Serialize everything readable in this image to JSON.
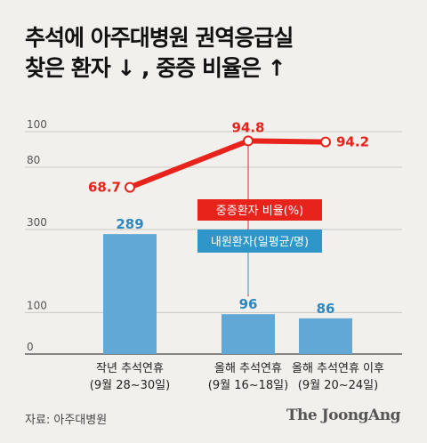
{
  "header": {
    "title_line1": "추석에 아주대병원 권역응급실",
    "title_line2": "찾은 환자 ↓ , 중증 비율은 ↑"
  },
  "footer": {
    "source": "자료: 아주대병원",
    "brand": "The JoongAng"
  },
  "colors": {
    "line": "#e8231c",
    "bar": "#62a8d6",
    "bar_label": "#2f88c0",
    "legend_red_bg": "#e8231c",
    "legend_blue_bg": "#2f96c9",
    "background": "#f1f0ec"
  },
  "chart_data": [
    {
      "type": "line",
      "categories": [
        "작년 추석연휴\n(9월 28~30일)",
        "올해 추석연휴\n(9월 16~18일)",
        "올해 추석연휴 이후\n(9월 20~24일)"
      ],
      "series": [
        {
          "name": "중증환자 비율(%)",
          "values": [
            68.7,
            94.8,
            94.2
          ]
        }
      ],
      "value_labels": [
        "68.7",
        "94.8",
        "94.2"
      ],
      "y_ticks": [
        "100",
        "80"
      ],
      "ylim": [
        60,
        100
      ]
    },
    {
      "type": "bar",
      "categories": [
        "작년 추석연휴\n(9월 28~30일)",
        "올해 추석연휴\n(9월 16~18일)",
        "올해 추석연휴 이후\n(9월 20~24일)"
      ],
      "series": [
        {
          "name": "내원환자(일평균/명)",
          "values": [
            289,
            96,
            86
          ]
        }
      ],
      "value_labels": [
        "289",
        "96",
        "86"
      ],
      "y_ticks": [
        "300",
        "100",
        "0"
      ],
      "ylim": [
        0,
        300
      ]
    }
  ],
  "x_labels": [
    {
      "line1": "작년 추석연휴",
      "line2": "(9월 28~30일)"
    },
    {
      "line1": "올해 추석연휴",
      "line2": "(9월 16~18일)"
    },
    {
      "line1": "올해 추석연휴 이후",
      "line2": "(9월 20~24일)"
    }
  ]
}
